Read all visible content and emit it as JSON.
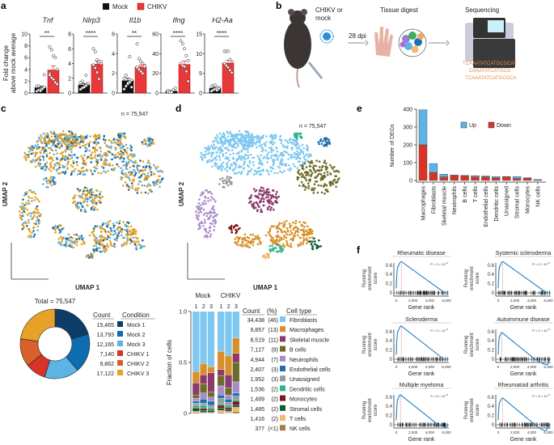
{
  "panel_labels": {
    "a": "a",
    "b": "b",
    "c": "c",
    "d": "d",
    "e": "e",
    "f": "f"
  },
  "panel_a": {
    "legend": [
      {
        "label": "Mock",
        "color": "#111111"
      },
      {
        "label": "CHIKV",
        "color": "#e8393a"
      }
    ],
    "ylabel_line1": "Fold change",
    "ylabel_line2": "above mock average",
    "genes": [
      {
        "name": "Tnf",
        "ylim": [
          0,
          10
        ],
        "ticks": [
          0,
          2,
          4,
          6,
          8,
          10
        ],
        "sig": "**",
        "mock_mean": 0.9,
        "mock_err": 0.25,
        "chikv_mean": 3.9,
        "chikv_err": 0.7,
        "mock_points": [
          0.3,
          0.5,
          0.6,
          0.8,
          1.0,
          1.1,
          1.2,
          0.4,
          0.7,
          3.1
        ],
        "chikv_points": [
          7.8,
          7.3,
          6.3,
          6.0,
          4.0,
          3.3,
          2.6,
          2.3,
          1.8,
          1.5,
          3.0
        ]
      },
      {
        "name": "Nlrp3",
        "ylim": [
          0,
          8
        ],
        "ticks": [
          0,
          2,
          4,
          6,
          8
        ],
        "sig": "****",
        "mock_mean": 1.1,
        "mock_err": 0.2,
        "chikv_mean": 3.9,
        "chikv_err": 0.4,
        "mock_points": [
          0.5,
          0.7,
          0.9,
          1.0,
          1.2,
          1.4,
          1.6,
          0.8,
          2.4,
          1.3
        ],
        "chikv_points": [
          6.0,
          5.6,
          4.5,
          4.2,
          4.0,
          3.8,
          3.4,
          2.8,
          1.9,
          4.3
        ]
      },
      {
        "name": "Il1b",
        "ylim": [
          0,
          6
        ],
        "ticks": [
          0,
          2,
          4,
          6
        ],
        "sig": "**",
        "mock_mean": 1.25,
        "mock_err": 0.25,
        "chikv_mean": 2.65,
        "chikv_err": 0.2,
        "mock_points": [
          0.4,
          0.7,
          0.9,
          1.1,
          1.3,
          1.5,
          1.8,
          1.0,
          3.7,
          0.6
        ],
        "chikv_points": [
          5.0,
          3.5,
          3.2,
          3.0,
          2.8,
          2.6,
          2.4,
          2.2,
          2.0,
          2.7
        ]
      },
      {
        "name": "Ifng",
        "ylim": [
          0,
          60
        ],
        "ticks": [
          0,
          20,
          40,
          60
        ],
        "sig": "****",
        "mock_mean": 2,
        "mock_err": 0.6,
        "chikv_mean": 29,
        "chikv_err": 3.5,
        "mock_points": [
          1,
          1.5,
          2,
          3,
          5,
          2.5,
          1.2,
          0.8
        ],
        "chikv_points": [
          53,
          50,
          45,
          38,
          33,
          30,
          28,
          27,
          22,
          12
        ]
      },
      {
        "name": "H2-Aa",
        "ylim": [
          0,
          15
        ],
        "ticks": [
          0,
          5,
          10,
          15
        ],
        "sig": "****",
        "mock_mean": 1.2,
        "mock_err": 0.2,
        "chikv_mean": 7.6,
        "chikv_err": 0.7,
        "mock_points": [
          0.5,
          0.8,
          1.0,
          1.2,
          1.4,
          1.6,
          1.9,
          2.0,
          0.7,
          1.1
        ],
        "chikv_points": [
          10.6,
          10.6,
          10.6,
          8.5,
          8.0,
          7.5,
          7.0,
          6.5,
          5.8,
          5.2
        ]
      }
    ]
  },
  "panel_b": {
    "step1": "CHIKV or",
    "step1b": "mock",
    "arrow1": "28 dpi",
    "step2": "Tissue digest",
    "step3": "Sequencing",
    "dna": [
      "TCAAATATCATGCGCAT",
      "CAAATATCATGCG",
      "TCAAATATCATGCGCA"
    ]
  },
  "panel_c": {
    "n_label": "n = 75,547",
    "xlabel": "UMAP 1",
    "ylabel": "UMAP 2"
  },
  "panel_d": {
    "n_label": "n = 75,547",
    "xlabel": "UMAP 1",
    "ylabel": "UMAP 2"
  },
  "donut": {
    "total_label": "Total = 75,547",
    "headers": {
      "count": "Count",
      "condition": "Condition"
    },
    "rows": [
      {
        "count": "15,465",
        "value": 15465,
        "label": "Mock 1",
        "color": "#0d3d66"
      },
      {
        "count": "13,793",
        "value": 13793,
        "label": "Mock 2",
        "color": "#0e6db0"
      },
      {
        "count": "12,165",
        "value": 12165,
        "label": "Mock 3",
        "color": "#5bb3e6"
      },
      {
        "count": "7,140",
        "value": 7140,
        "label": "CHIKV 1",
        "color": "#d93327"
      },
      {
        "count": "9,862",
        "value": 9862,
        "label": "CHIKV 2",
        "color": "#d9602a"
      },
      {
        "count": "17,122",
        "value": 17122,
        "label": "CHIKV 3",
        "color": "#e6a126"
      }
    ]
  },
  "composition": {
    "group_labels": [
      "Mock",
      "CHIKV"
    ],
    "sample_labels": [
      "1",
      "2",
      "3",
      "1",
      "2",
      "3"
    ],
    "ylabel": "Fraction of cells",
    "yticks": [
      "0",
      "0.5",
      "1.0"
    ],
    "headers": {
      "count": "Count",
      "pct": "(%)",
      "type": "Cell type"
    },
    "cell_types": [
      {
        "count": "34,438",
        "pct": "(46)",
        "label": "Fibroblasts",
        "color": "#7ec8ef"
      },
      {
        "count": "9,857",
        "pct": "(13)",
        "label": "Macrophages",
        "color": "#d9902a"
      },
      {
        "count": "8,519",
        "pct": "(11)",
        "label": "Skeletal muscle",
        "color": "#8c3a6a"
      },
      {
        "count": "7,127",
        "pct": "(9)",
        "label": "B cells",
        "color": "#6b6b2a"
      },
      {
        "count": "4,944",
        "pct": "(7)",
        "label": "Neutrophils",
        "color": "#a98acb"
      },
      {
        "count": "2,407",
        "pct": "(3)",
        "label": "Endothelial cells",
        "color": "#1f6fb0"
      },
      {
        "count": "1,952",
        "pct": "(3)",
        "label": "Unassigned",
        "color": "#9a9a9a"
      },
      {
        "count": "1,536",
        "pct": "(2)",
        "label": "Dendritic cells",
        "color": "#2fb38a"
      },
      {
        "count": "1,489",
        "pct": "(2)",
        "label": "Monocytes",
        "color": "#7a1a1a"
      },
      {
        "count": "1,485",
        "pct": "(2)",
        "label": "Stromal cells",
        "color": "#0f5a3a"
      },
      {
        "count": "1,416",
        "pct": "(2)",
        "label": "T cells",
        "color": "#f2b86b"
      },
      {
        "count": "377",
        "pct": "(<1)",
        "label": "NK cells",
        "color": "#a67c52"
      }
    ],
    "fractions": [
      [
        0.59,
        0.11,
        0.12,
        0.03,
        0.03,
        0.02,
        0.02,
        0.02,
        0.01,
        0.03,
        0.01,
        0.01
      ],
      [
        0.51,
        0.11,
        0.09,
        0.09,
        0.06,
        0.04,
        0.02,
        0.03,
        0.02,
        0.02,
        0.005,
        0.005
      ],
      [
        0.54,
        0.06,
        0.19,
        0.05,
        0.04,
        0.04,
        0.02,
        0.02,
        0.01,
        0.02,
        0.005,
        0.005
      ],
      [
        0.39,
        0.18,
        0.06,
        0.1,
        0.09,
        0.03,
        0.05,
        0.02,
        0.03,
        0.02,
        0.02,
        0.01
      ],
      [
        0.43,
        0.19,
        0.13,
        0.07,
        0.04,
        0.03,
        0.03,
        0.02,
        0.02,
        0.02,
        0.015,
        0.005
      ],
      [
        0.26,
        0.15,
        0.09,
        0.19,
        0.11,
        0.03,
        0.03,
        0.02,
        0.04,
        0.02,
        0.04,
        0.02
      ]
    ]
  },
  "chart_data": {
    "type": "bar",
    "stacked": true,
    "ylabel": "Number of DEGs",
    "ylim": [
      0,
      400
    ],
    "yticks": [
      0,
      100,
      200,
      300,
      400
    ],
    "legend_placement": "top-right",
    "categories": [
      "Macrophages",
      "Fibroblasts",
      "Skeletal muscle",
      "Neutrophils",
      "B cells",
      "T cells",
      "Endothelial cells",
      "Dendritic cells",
      "Unassigned",
      "Stromal cells",
      "Monocytes",
      "NK cells"
    ],
    "series": [
      {
        "name": "Down",
        "color": "#d93327",
        "values": [
          200,
          45,
          20,
          28,
          27,
          20,
          20,
          14,
          20,
          10,
          12,
          2
        ]
      },
      {
        "name": "Up",
        "color": "#5bb3e6",
        "values": [
          197,
          50,
          15,
          2,
          1,
          7,
          5,
          8,
          2,
          12,
          3,
          3
        ]
      }
    ]
  },
  "gsea": {
    "ylabel1": "Running",
    "ylabel2": "enrichment",
    "ylabel3": "score",
    "xlabel": "Gene rank",
    "xticks": [
      "0",
      "2,000",
      "4,000",
      "6,000"
    ],
    "yticks": [
      "0",
      "0.2",
      "0.4",
      "0.6"
    ],
    "plots": [
      {
        "title": "Rheumatic disease",
        "p": "P = 2 × 10",
        "exp": "−5",
        "peak_es": 0.68,
        "peak_rank": 600,
        "zero_rank": 5800,
        "min_es": 0,
        "min_rank": 6100
      },
      {
        "title": "Systemic scleroderma",
        "p": "P = 2 × 10",
        "exp": "−5",
        "peak_es": 0.68,
        "peak_rank": 550,
        "zero_rank": 5800,
        "min_es": 0,
        "min_rank": 6100
      },
      {
        "title": "Scleroderma",
        "p": "P = 2 × 10",
        "exp": "−5",
        "peak_es": 0.72,
        "peak_rank": 600,
        "zero_rank": 5700,
        "min_es": 0,
        "min_rank": 6100
      },
      {
        "title": "Autoimmune disease",
        "p": "P = 2 × 10",
        "exp": "−5",
        "peak_es": 0.58,
        "peak_rank": 450,
        "zero_rank": 4400,
        "min_es": -0.12,
        "min_rank": 5900
      },
      {
        "title": "Multiple myeloma",
        "p": "P = 5 × 10",
        "exp": "−5",
        "peak_es": 0.65,
        "peak_rank": 500,
        "zero_rank": 5000,
        "min_es": -0.05,
        "min_rank": 6000
      },
      {
        "title": "Rheumatoid arthritis",
        "p": "P = 8 × 10",
        "exp": "−5",
        "peak_es": 0.58,
        "peak_rank": 550,
        "zero_rank": 4400,
        "min_es": -0.13,
        "min_rank": 5700
      }
    ]
  }
}
